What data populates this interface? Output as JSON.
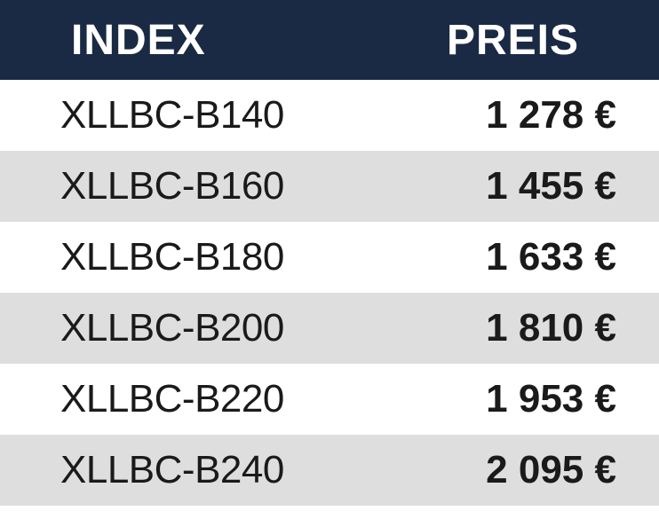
{
  "table": {
    "header_bg": "#1a2a44",
    "header_text_color": "#ffffff",
    "row_bg_even": "#ffffff",
    "row_bg_odd": "#dedede",
    "data_text_color": "#1a1a1a",
    "columns": {
      "index": "INDEX",
      "preis": "PREIS"
    },
    "rows": [
      {
        "index": "XLLBC-B140",
        "preis": "1 278 €"
      },
      {
        "index": "XLLBC-B160",
        "preis": "1 455 €"
      },
      {
        "index": "XLLBC-B180",
        "preis": "1 633 €"
      },
      {
        "index": "XLLBC-B200",
        "preis": "1 810 €"
      },
      {
        "index": "XLLBC-B220",
        "preis": "1 953 €"
      },
      {
        "index": "XLLBC-B240",
        "preis": "2 095 €"
      }
    ]
  }
}
